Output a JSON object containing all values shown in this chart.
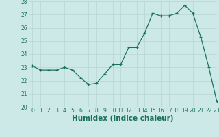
{
  "x": [
    0,
    1,
    2,
    3,
    4,
    5,
    6,
    7,
    8,
    9,
    10,
    11,
    12,
    13,
    14,
    15,
    16,
    17,
    18,
    19,
    20,
    21,
    22,
    23
  ],
  "y": [
    23.1,
    22.8,
    22.8,
    22.8,
    23.0,
    22.8,
    22.2,
    21.7,
    21.8,
    22.5,
    23.2,
    23.2,
    24.5,
    24.5,
    25.6,
    27.1,
    26.9,
    26.9,
    27.1,
    27.7,
    27.1,
    25.3,
    23.0,
    20.4
  ],
  "xlabel": "Humidex (Indice chaleur)",
  "ylim": [
    20,
    28
  ],
  "xlim": [
    -0.5,
    23
  ],
  "yticks": [
    20,
    21,
    22,
    23,
    24,
    25,
    26,
    27,
    28
  ],
  "xticks": [
    0,
    1,
    2,
    3,
    4,
    5,
    6,
    7,
    8,
    9,
    10,
    11,
    12,
    13,
    14,
    15,
    16,
    17,
    18,
    19,
    20,
    21,
    22,
    23
  ],
  "line_color": "#1a7060",
  "marker": "+",
  "bg_color": "#cce9e7",
  "grid_color": "#b8d8d6",
  "tick_label_fontsize": 5.5,
  "xlabel_fontsize": 7.5,
  "xlabel_fontweight": "bold"
}
